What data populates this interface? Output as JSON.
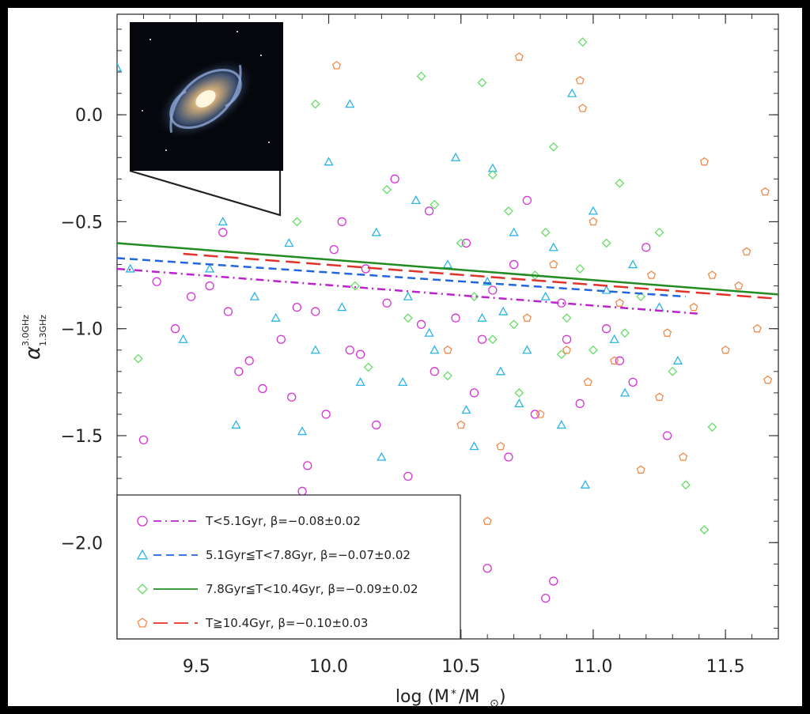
{
  "chart_data": {
    "type": "scatter",
    "xlabel": "log (M",
    "xlabel_sub": "*",
    "xlabel_mid": "/M",
    "xlabel_sub2": "⊙",
    "xlabel_end": ")",
    "ylabel": "α",
    "ylabel_sup": "3.0GHz",
    "ylabel_sub": "1.3GHz",
    "xlim": [
      9.2,
      11.7
    ],
    "ylim": [
      -2.45,
      0.47
    ],
    "xticks": [
      9.5,
      10.0,
      10.5,
      11.0,
      11.5
    ],
    "xtick_labels": [
      "9.5",
      "10.0",
      "10.5",
      "11.0",
      "11.5"
    ],
    "yticks": [
      0.0,
      -0.5,
      -1.0,
      -1.5,
      -2.0
    ],
    "ytick_labels": [
      "0.0",
      "−0.5",
      "−1.0",
      "−1.5",
      "−2.0"
    ],
    "legend_position": "bottom-left",
    "inset": "galaxy image, top-left",
    "series": [
      {
        "name": "T<5.1Gyr, β=−0.08±0.02",
        "color": "#d633d6",
        "marker": "circle",
        "line_style": "dashdot",
        "slope": -0.08,
        "fit": {
          "x": [
            9.2,
            11.4
          ],
          "y": [
            -0.72,
            -0.93
          ]
        },
        "points": [
          [
            9.3,
            -1.52
          ],
          [
            9.42,
            -1.0
          ],
          [
            9.62,
            -0.92
          ],
          [
            9.7,
            -1.15
          ],
          [
            9.75,
            -1.28
          ],
          [
            9.82,
            -1.05
          ],
          [
            9.86,
            -1.32
          ],
          [
            9.9,
            -1.76
          ],
          [
            9.92,
            -1.64
          ],
          [
            9.95,
            -0.92
          ],
          [
            10.02,
            -0.63
          ],
          [
            10.08,
            -1.1
          ],
          [
            10.12,
            -1.12
          ],
          [
            10.18,
            -1.45
          ],
          [
            10.22,
            -0.88
          ],
          [
            10.3,
            -1.69
          ],
          [
            10.35,
            -0.98
          ],
          [
            10.4,
            -1.2
          ],
          [
            10.44,
            -1.85
          ],
          [
            10.48,
            -0.95
          ],
          [
            10.55,
            -1.3
          ],
          [
            10.6,
            -2.12
          ],
          [
            10.62,
            -0.82
          ],
          [
            10.7,
            -0.7
          ],
          [
            10.78,
            -1.4
          ],
          [
            10.82,
            -2.26
          ],
          [
            10.85,
            -2.18
          ],
          [
            10.9,
            -1.05
          ],
          [
            10.95,
            -1.35
          ],
          [
            11.05,
            -1.0
          ],
          [
            11.15,
            -1.25
          ],
          [
            11.28,
            -1.5
          ],
          [
            9.55,
            -0.8
          ],
          [
            9.6,
            -0.55
          ],
          [
            9.88,
            -0.9
          ],
          [
            10.05,
            -0.5
          ],
          [
            10.25,
            -0.3
          ],
          [
            10.52,
            -0.6
          ],
          [
            10.68,
            -1.6
          ],
          [
            10.75,
            -0.4
          ],
          [
            9.35,
            -0.78
          ],
          [
            9.48,
            -0.85
          ],
          [
            9.66,
            -1.2
          ],
          [
            9.99,
            -1.4
          ],
          [
            10.14,
            -0.72
          ],
          [
            10.38,
            -0.45
          ],
          [
            10.58,
            -1.05
          ],
          [
            10.88,
            -0.88
          ],
          [
            11.1,
            -1.15
          ],
          [
            11.2,
            -0.62
          ]
        ]
      },
      {
        "name": "5.1Gyr≦T<7.8Gyr, β=−0.07±0.02",
        "color": "#2bb5e6",
        "marker": "triangle",
        "line_style": "dash",
        "slope": -0.07,
        "fit": {
          "x": [
            9.2,
            11.35
          ],
          "y": [
            -0.67,
            -0.85
          ]
        },
        "points": [
          [
            9.2,
            0.22
          ],
          [
            9.25,
            -0.72
          ],
          [
            9.45,
            -1.05
          ],
          [
            9.6,
            -0.5
          ],
          [
            9.65,
            -1.45
          ],
          [
            9.72,
            -0.85
          ],
          [
            9.85,
            -0.6
          ],
          [
            9.9,
            -1.48
          ],
          [
            10.0,
            -0.22
          ],
          [
            10.05,
            -0.9
          ],
          [
            10.08,
            0.05
          ],
          [
            10.12,
            -1.25
          ],
          [
            10.2,
            -1.6
          ],
          [
            10.28,
            -1.25
          ],
          [
            10.33,
            -0.4
          ],
          [
            10.4,
            -1.1
          ],
          [
            10.45,
            -0.7
          ],
          [
            10.52,
            -1.38
          ],
          [
            10.55,
            -1.55
          ],
          [
            10.58,
            -0.95
          ],
          [
            10.62,
            -0.25
          ],
          [
            10.65,
            -1.2
          ],
          [
            10.7,
            -0.55
          ],
          [
            10.75,
            -1.1
          ],
          [
            10.82,
            -0.85
          ],
          [
            10.88,
            -1.45
          ],
          [
            10.92,
            0.1
          ],
          [
            10.97,
            -1.73
          ],
          [
            11.0,
            -0.45
          ],
          [
            11.08,
            -1.05
          ],
          [
            11.15,
            -0.7
          ],
          [
            11.25,
            -0.9
          ],
          [
            11.32,
            -1.15
          ],
          [
            9.55,
            -0.72
          ],
          [
            9.8,
            -0.95
          ],
          [
            9.95,
            -1.1
          ],
          [
            10.18,
            -0.55
          ],
          [
            10.3,
            -0.85
          ],
          [
            10.48,
            -0.2
          ],
          [
            10.6,
            -0.78
          ],
          [
            10.72,
            -1.35
          ],
          [
            10.85,
            -0.62
          ],
          [
            11.05,
            -0.82
          ],
          [
            11.12,
            -1.3
          ],
          [
            10.38,
            -1.02
          ],
          [
            10.66,
            -0.92
          ]
        ]
      },
      {
        "name": "7.8Gyr≦T<10.4Gyr, β=−0.09±0.02",
        "color": "#66dd66",
        "marker": "diamond",
        "line_style": "solid",
        "slope": -0.09,
        "fit": {
          "x": [
            9.2,
            11.7
          ],
          "y": [
            -0.6,
            -0.84
          ]
        },
        "points": [
          [
            9.28,
            -1.14
          ],
          [
            9.88,
            -0.5
          ],
          [
            9.95,
            0.05
          ],
          [
            10.1,
            -0.8
          ],
          [
            10.22,
            -0.35
          ],
          [
            10.35,
            0.18
          ],
          [
            10.45,
            -1.22
          ],
          [
            10.5,
            -0.6
          ],
          [
            10.58,
            0.15
          ],
          [
            10.62,
            -1.05
          ],
          [
            10.68,
            -0.45
          ],
          [
            10.72,
            -1.3
          ],
          [
            10.78,
            -0.75
          ],
          [
            10.85,
            -0.15
          ],
          [
            10.9,
            -0.95
          ],
          [
            10.96,
            0.34
          ],
          [
            11.0,
            -1.1
          ],
          [
            11.05,
            -0.6
          ],
          [
            11.1,
            -0.32
          ],
          [
            11.18,
            -0.85
          ],
          [
            11.25,
            -0.55
          ],
          [
            11.3,
            -1.2
          ],
          [
            11.35,
            -1.73
          ],
          [
            11.42,
            -1.94
          ],
          [
            11.45,
            -1.46
          ],
          [
            10.3,
            -0.95
          ],
          [
            10.4,
            -0.42
          ],
          [
            10.55,
            -0.85
          ],
          [
            10.7,
            -0.98
          ],
          [
            10.82,
            -0.55
          ],
          [
            10.95,
            -0.72
          ],
          [
            11.12,
            -1.02
          ],
          [
            10.15,
            -1.18
          ],
          [
            10.62,
            -0.28
          ],
          [
            10.88,
            -1.12
          ]
        ]
      },
      {
        "name": "T≧10.4Gyr, β=−0.10±0.03",
        "color": "#f08a4b",
        "marker": "pentagon",
        "line_style": "longdash",
        "slope": -0.1,
        "fit": {
          "x": [
            9.45,
            11.7
          ],
          "y": [
            -0.65,
            -0.86
          ]
        },
        "points": [
          [
            10.03,
            0.23
          ],
          [
            10.72,
            0.27
          ],
          [
            10.95,
            0.16
          ],
          [
            10.96,
            0.03
          ],
          [
            11.42,
            -0.22
          ],
          [
            11.58,
            -0.64
          ],
          [
            11.65,
            -0.36
          ],
          [
            11.66,
            -1.24
          ],
          [
            10.6,
            -1.9
          ],
          [
            10.8,
            -1.4
          ],
          [
            10.9,
            -1.1
          ],
          [
            11.0,
            -0.5
          ],
          [
            11.08,
            -1.15
          ],
          [
            11.18,
            -1.66
          ],
          [
            11.22,
            -0.75
          ],
          [
            11.28,
            -1.02
          ],
          [
            11.34,
            -1.6
          ],
          [
            11.38,
            -0.9
          ],
          [
            11.45,
            -0.75
          ],
          [
            11.5,
            -1.1
          ],
          [
            10.5,
            -1.45
          ],
          [
            10.65,
            -1.55
          ],
          [
            10.75,
            -0.95
          ],
          [
            10.85,
            -0.7
          ],
          [
            11.1,
            -0.88
          ],
          [
            11.25,
            -1.32
          ],
          [
            11.55,
            -0.8
          ],
          [
            11.62,
            -1.0
          ],
          [
            10.45,
            -1.1
          ],
          [
            10.98,
            -1.25
          ]
        ]
      }
    ]
  },
  "legend": [
    {
      "label": "T<5.1Gyr, β=−0.08±0.02"
    },
    {
      "label": "5.1Gyr≦T<7.8Gyr, β=−0.07±0.02"
    },
    {
      "label": "7.8Gyr≦T<10.4Gyr, β=−0.09±0.02"
    },
    {
      "label": "T≧10.4Gyr, β=−0.10±0.03"
    }
  ]
}
